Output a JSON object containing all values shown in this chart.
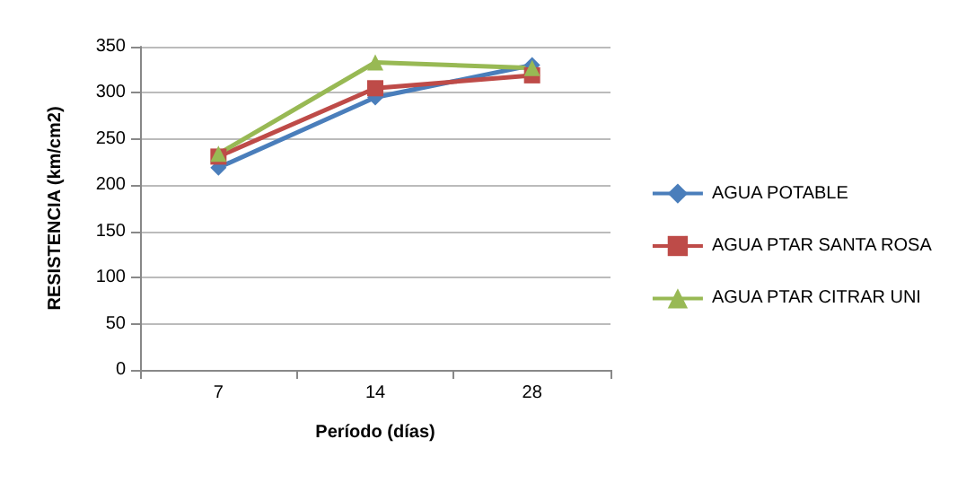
{
  "chart_data": {
    "type": "line",
    "xlabel": "Período (días)",
    "ylabel": "RESISTENCIA (km/cm2)",
    "categories": [
      "7",
      "14",
      "28"
    ],
    "series": [
      {
        "name": "AGUA POTABLE",
        "color": "#4a7ebb",
        "marker": "diamond",
        "values": [
          219,
          295,
          330
        ]
      },
      {
        "name": "AGUA PTAR SANTA ROSA",
        "color": "#be4b48",
        "marker": "square",
        "values": [
          231,
          305,
          319
        ]
      },
      {
        "name": "AGUA PTAR CITRAR UNI",
        "color": "#98b954",
        "marker": "triangle",
        "values": [
          234,
          333,
          327
        ]
      }
    ],
    "ylim": [
      0,
      350
    ],
    "yticks": [
      0,
      50,
      100,
      150,
      200,
      250,
      300,
      350
    ],
    "grid": "y",
    "legend": "right"
  }
}
